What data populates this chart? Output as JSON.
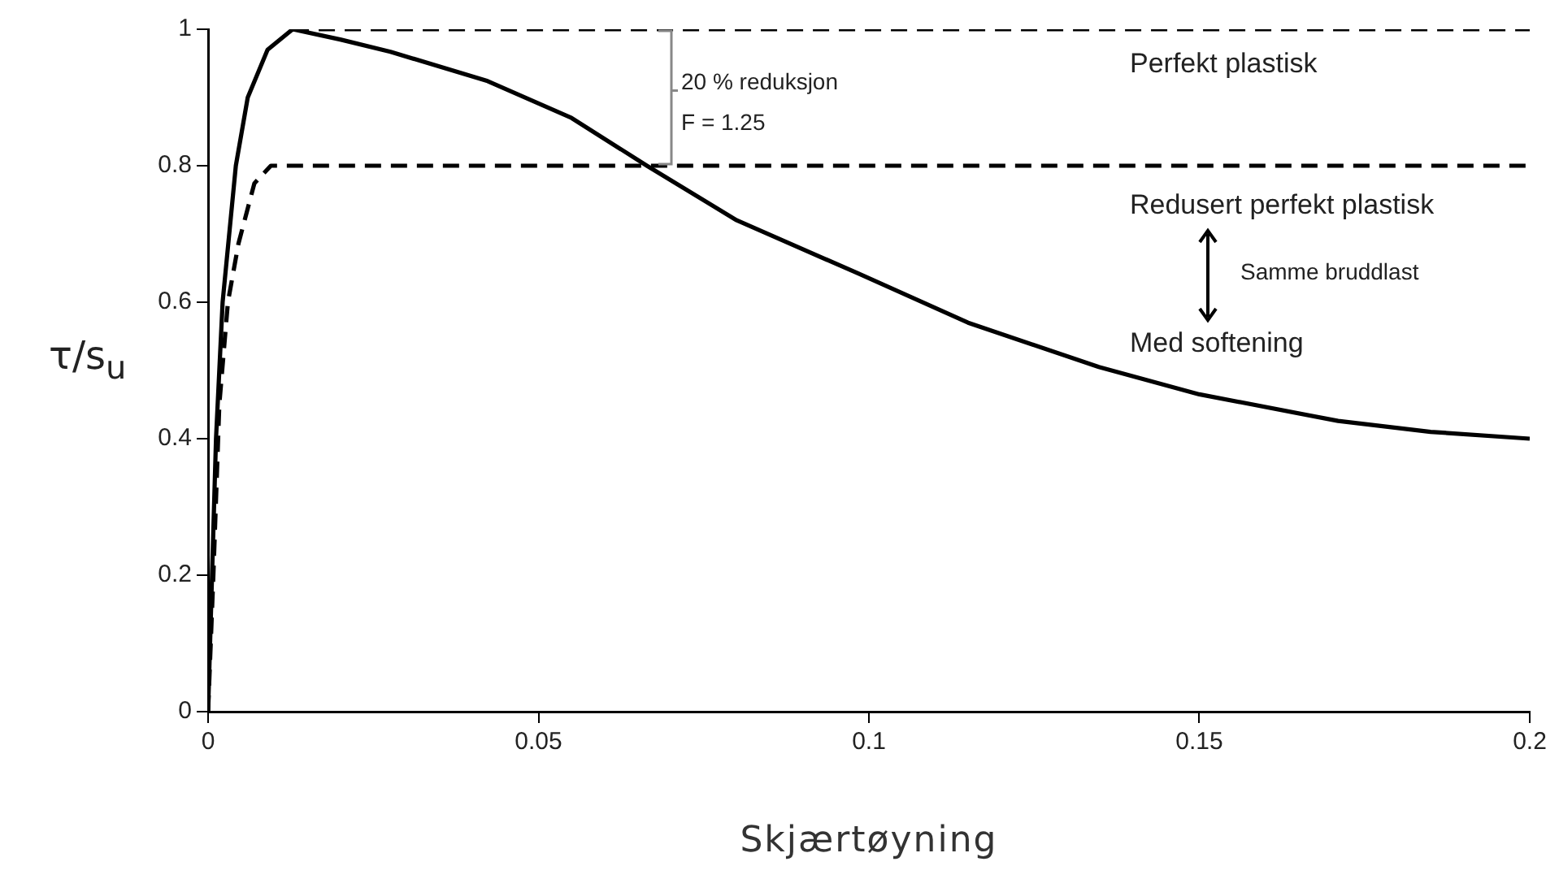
{
  "chart_data": {
    "type": "line",
    "xlabel": "Skjærtøyning",
    "ylabel": "τ/s$_{u}$",
    "series": [
      {
        "color": "#000000",
        "line_style": "solid",
        "x": [
          0,
          0.0006,
          0.0012,
          0.0022,
          0.0042,
          0.006,
          0.009,
          0.0128,
          0.02,
          0.0276,
          0.0423,
          0.055,
          0.0664,
          0.08,
          0.0984,
          0.115,
          0.1348,
          0.15,
          0.171,
          0.185,
          0.2
        ],
        "values": [
          0,
          0.2,
          0.4,
          0.6,
          0.8,
          0.9,
          0.97,
          1.0,
          0.985,
          0.967,
          0.924,
          0.87,
          0.8,
          0.72,
          0.642,
          0.57,
          0.505,
          0.465,
          0.426,
          0.41,
          0.4
        ]
      },
      {
        "color": "#000000",
        "line_style": "dashed",
        "x": [
          0.0128,
          0.2
        ],
        "values": [
          1,
          1
        ]
      },
      {
        "color": "#000000",
        "line_style": "dashed",
        "x": [
          0,
          0.0008,
          0.0017,
          0.003,
          0.0046,
          0.007,
          0.0095,
          0.012,
          0.2
        ],
        "values": [
          0,
          0.2,
          0.45,
          0.6,
          0.686,
          0.774,
          0.8,
          0.8,
          0.8
        ]
      }
    ],
    "xlim": [
      0,
      0.2
    ],
    "xticks": [
      0,
      0.05,
      0.1,
      0.15,
      0.2
    ],
    "ylim": [
      0,
      1
    ],
    "yticks": [
      0,
      0.2,
      0.4,
      0.6,
      0.8,
      1
    ],
    "grid": false,
    "legend": false,
    "marker": "none",
    "annotations": [
      "20 % reduksjon",
      "F = 1.25",
      "Perfekt plastisk",
      "Redusert perfekt plastisk",
      "Samme bruddlast",
      "Med softening"
    ]
  }
}
